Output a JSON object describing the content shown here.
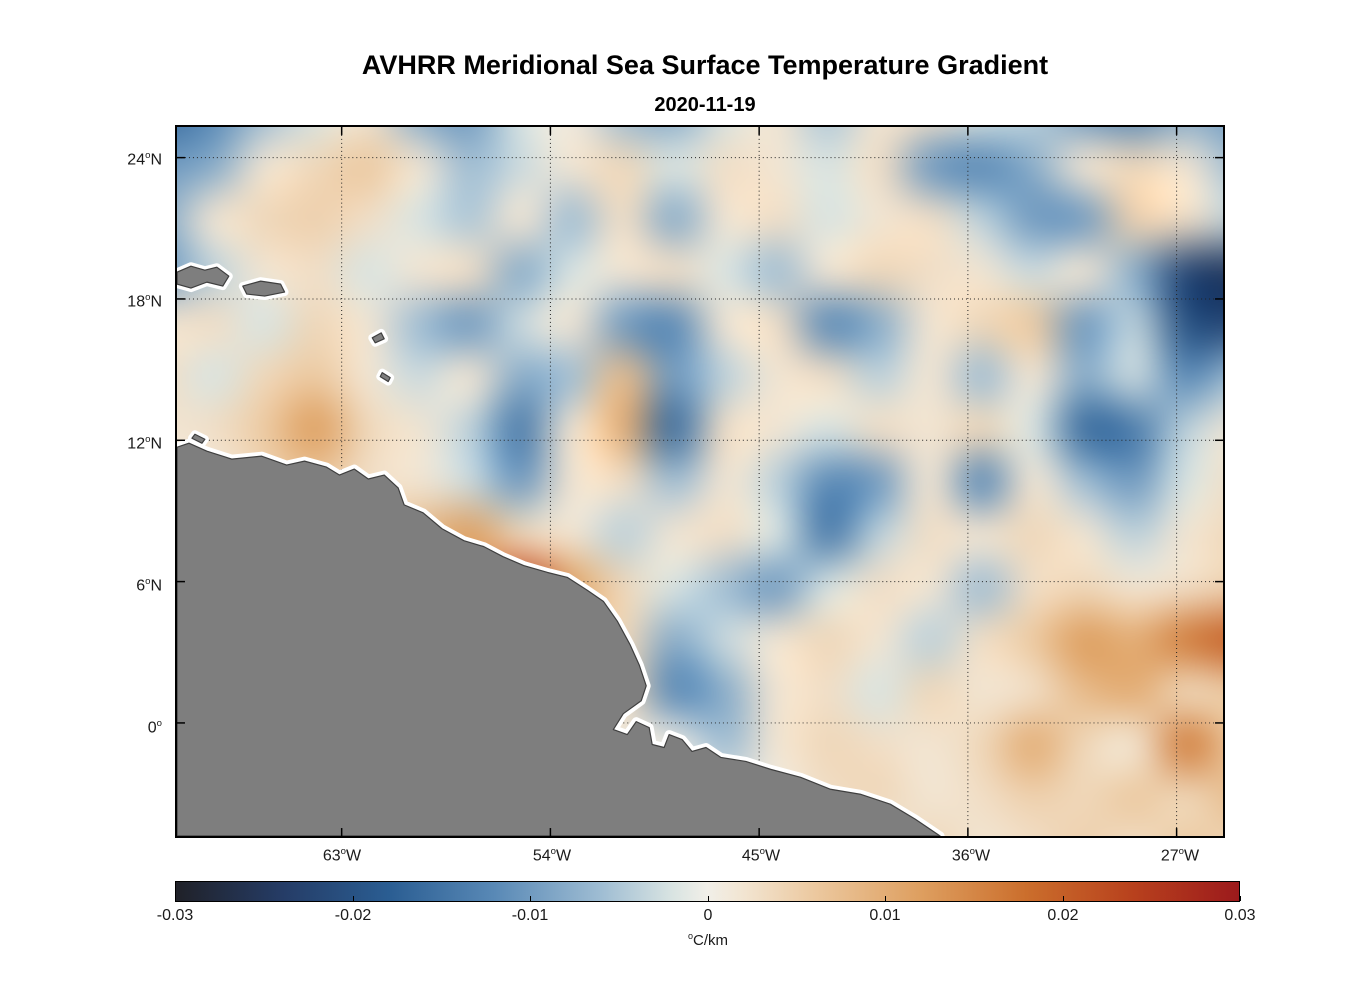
{
  "chart_data": {
    "type": "heatmap",
    "title": "AVHRR Meridional Sea Surface Temperature Gradient",
    "subtitle_date": "2020-11-19",
    "degree_symbol": "o",
    "grid_on": true,
    "grid_style": "dotted",
    "extent": {
      "lon_west_deg": [
        70.1,
        25.0
      ],
      "lat_deg": [
        25.3,
        -4.8
      ]
    },
    "x_ticks": [
      {
        "value": 63,
        "num": "63",
        "hemi": "W"
      },
      {
        "value": 54,
        "num": "54",
        "hemi": "W"
      },
      {
        "value": 45,
        "num": "45",
        "hemi": "W"
      },
      {
        "value": 36,
        "num": "36",
        "hemi": "W"
      },
      {
        "value": 27,
        "num": "27",
        "hemi": "W"
      }
    ],
    "y_ticks": [
      {
        "value": 24,
        "num": "24",
        "hemi": "N"
      },
      {
        "value": 18,
        "num": "18",
        "hemi": "N"
      },
      {
        "value": 12,
        "num": "12",
        "hemi": "N"
      },
      {
        "value": 6,
        "num": "6",
        "hemi": "N"
      },
      {
        "value": 0,
        "num": "0",
        "hemi": ""
      }
    ],
    "colorbar": {
      "orientation": "horizontal",
      "min": -0.03,
      "max": 0.03,
      "ticks": [
        "-0.03",
        "-0.02",
        "-0.01",
        "0",
        "0.01",
        "0.02",
        "0.03"
      ],
      "unit_sup": "o",
      "unit_text": "C/km",
      "stops": [
        {
          "v": -0.03,
          "c": "#202128"
        },
        {
          "v": -0.024,
          "c": "#253c66"
        },
        {
          "v": -0.018,
          "c": "#2a5d92"
        },
        {
          "v": -0.012,
          "c": "#5989b6"
        },
        {
          "v": -0.006,
          "c": "#9fbdd3"
        },
        {
          "v": -0.002,
          "c": "#d9e4e2"
        },
        {
          "v": 0.0,
          "c": "#f1efe8"
        },
        {
          "v": 0.002,
          "c": "#f2e5d2"
        },
        {
          "v": 0.006,
          "c": "#ecc9a0"
        },
        {
          "v": 0.012,
          "c": "#de9f60"
        },
        {
          "v": 0.018,
          "c": "#cb6e2c"
        },
        {
          "v": 0.024,
          "c": "#b8411d"
        },
        {
          "v": 0.03,
          "c": "#9c1a1c"
        }
      ]
    },
    "land_color": "#7e7e7e",
    "coast_halo_color": "#ffffff",
    "field": {
      "units": "degC_per_km",
      "rows": 15,
      "cols": 22,
      "lon_west_deg": [
        70.1,
        25.0
      ],
      "lat_deg": [
        25.3,
        -4.8
      ],
      "values": [
        [
          -0.016,
          -0.012,
          -0.006,
          -0.002,
          0.002,
          -0.008,
          -0.01,
          -0.002,
          0.001,
          -0.006,
          -0.008,
          -0.002,
          0.002,
          -0.005,
          0.002,
          0.003,
          -0.002,
          -0.004,
          -0.01,
          -0.012,
          -0.008,
          -0.01
        ],
        [
          -0.01,
          -0.008,
          0.002,
          0.004,
          0.006,
          0.002,
          -0.006,
          -0.003,
          0.002,
          0.004,
          -0.002,
          0.003,
          0.002,
          -0.002,
          0.003,
          -0.01,
          -0.012,
          -0.008,
          0.002,
          0.004,
          0.002,
          -0.006
        ],
        [
          -0.008,
          0.002,
          0.004,
          0.005,
          0.003,
          -0.002,
          -0.005,
          0.002,
          -0.006,
          0.003,
          -0.008,
          0.002,
          0.003,
          -0.002,
          0.002,
          0.003,
          -0.004,
          -0.01,
          -0.01,
          0.005,
          0.003,
          -0.004
        ],
        [
          -0.01,
          -0.004,
          0.002,
          0.003,
          -0.002,
          0.002,
          0.003,
          -0.008,
          -0.002,
          0.002,
          0.003,
          -0.002,
          -0.006,
          0.002,
          0.004,
          0.003,
          0.002,
          -0.003,
          0.002,
          -0.008,
          -0.022,
          -0.025
        ],
        [
          0.002,
          0.003,
          -0.002,
          0.004,
          0.002,
          -0.006,
          -0.01,
          -0.003,
          0.002,
          -0.01,
          -0.012,
          0.002,
          0.003,
          -0.012,
          -0.008,
          0.002,
          0.004,
          0.006,
          -0.01,
          -0.004,
          -0.02,
          -0.022
        ],
        [
          0.003,
          -0.002,
          0.004,
          0.006,
          0.002,
          -0.003,
          0.002,
          -0.008,
          -0.006,
          0.008,
          -0.01,
          -0.004,
          0.002,
          0.003,
          -0.004,
          0.002,
          -0.006,
          0.002,
          -0.008,
          -0.003,
          -0.012,
          -0.006
        ],
        [
          0.002,
          0.003,
          0.006,
          0.012,
          0.004,
          0.002,
          -0.004,
          -0.014,
          0.002,
          0.01,
          -0.016,
          0.003,
          0.002,
          -0.002,
          0.003,
          0.002,
          0.004,
          -0.002,
          -0.016,
          -0.014,
          -0.004,
          0.002
        ],
        [
          null,
          null,
          0.004,
          0.006,
          0.003,
          0.002,
          -0.003,
          -0.01,
          0.002,
          0.003,
          -0.006,
          0.002,
          -0.004,
          -0.012,
          -0.01,
          0.002,
          -0.012,
          0.002,
          -0.006,
          -0.01,
          -0.002,
          0.003
        ],
        [
          null,
          null,
          null,
          null,
          0.005,
          0.008,
          0.012,
          0.004,
          0.002,
          -0.004,
          0.002,
          0.003,
          -0.002,
          -0.014,
          -0.004,
          0.003,
          0.002,
          0.004,
          0.002,
          -0.004,
          0.002,
          0.004
        ],
        [
          null,
          null,
          null,
          null,
          null,
          null,
          0.01,
          0.024,
          0.012,
          0.004,
          -0.002,
          -0.006,
          -0.01,
          -0.002,
          0.003,
          0.002,
          -0.006,
          0.003,
          0.004,
          0.002,
          0.003,
          0.005
        ],
        [
          null,
          null,
          null,
          null,
          null,
          null,
          null,
          null,
          0.006,
          0.004,
          -0.008,
          -0.003,
          0.002,
          0.004,
          0.002,
          -0.004,
          0.003,
          0.006,
          0.012,
          0.01,
          0.016,
          0.02
        ],
        [
          null,
          null,
          null,
          null,
          null,
          null,
          null,
          null,
          null,
          0.004,
          -0.012,
          -0.008,
          0.002,
          0.003,
          -0.002,
          0.004,
          0.002,
          0.003,
          0.008,
          0.01,
          0.004,
          0.006
        ],
        [
          null,
          null,
          null,
          null,
          null,
          null,
          null,
          null,
          null,
          null,
          null,
          -0.006,
          0.002,
          0.004,
          0.003,
          0.002,
          0.004,
          0.01,
          0.004,
          0.002,
          0.016,
          0.006
        ],
        [
          null,
          null,
          null,
          null,
          null,
          null,
          null,
          null,
          null,
          null,
          null,
          null,
          null,
          0.003,
          0.004,
          0.002,
          0.003,
          0.005,
          0.004,
          0.006,
          0.004,
          0.008
        ],
        [
          null,
          null,
          null,
          null,
          null,
          null,
          null,
          null,
          null,
          null,
          null,
          null,
          null,
          null,
          null,
          0.004,
          0.002,
          0.003,
          0.005,
          0.003,
          0.006,
          0.004
        ]
      ]
    }
  }
}
